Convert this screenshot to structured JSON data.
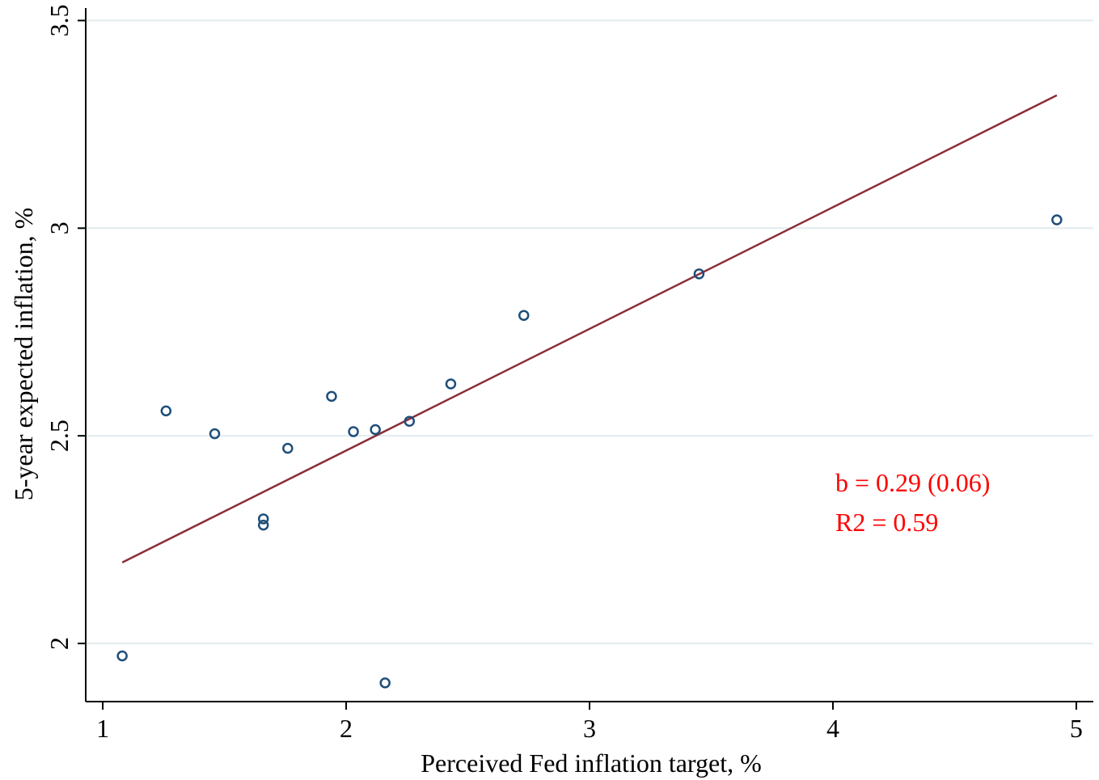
{
  "chart_data": {
    "type": "scatter",
    "xlabel": "Perceived Fed inflation target, %",
    "ylabel": "5-year expected inflation, %",
    "xlim": [
      0.93,
      5.07
    ],
    "ylim": [
      1.86,
      3.53
    ],
    "xticks": [
      1,
      2,
      3,
      4,
      5
    ],
    "xtick_labels": [
      "1",
      "2",
      "3",
      "4",
      "5"
    ],
    "yticks": [
      2,
      2.5,
      3,
      3.5
    ],
    "ytick_labels": [
      "2",
      "2.5",
      "3",
      "3.5"
    ],
    "grid": "horizontal",
    "points": [
      {
        "x": 1.08,
        "y": 1.97
      },
      {
        "x": 1.26,
        "y": 2.56
      },
      {
        "x": 1.46,
        "y": 2.505
      },
      {
        "x": 1.66,
        "y": 2.3
      },
      {
        "x": 1.66,
        "y": 2.285
      },
      {
        "x": 1.76,
        "y": 2.47
      },
      {
        "x": 1.94,
        "y": 2.595
      },
      {
        "x": 2.03,
        "y": 2.51
      },
      {
        "x": 2.12,
        "y": 2.515
      },
      {
        "x": 2.16,
        "y": 1.905
      },
      {
        "x": 2.26,
        "y": 2.535
      },
      {
        "x": 2.43,
        "y": 2.625
      },
      {
        "x": 2.73,
        "y": 2.79
      },
      {
        "x": 3.45,
        "y": 2.89
      },
      {
        "x": 4.92,
        "y": 3.02
      }
    ],
    "fit_line": {
      "x": [
        1.08,
        4.92
      ],
      "y": [
        2.195,
        3.32
      ]
    },
    "annotations": [
      "b = 0.29 (0.06)",
      "R2 = 0.59"
    ],
    "colors": {
      "marker": "#1f4e79",
      "fit_line": "#8b2f3a",
      "annotation": "#ff0000",
      "grid": "#e1ebee",
      "axis": "#000000"
    }
  }
}
